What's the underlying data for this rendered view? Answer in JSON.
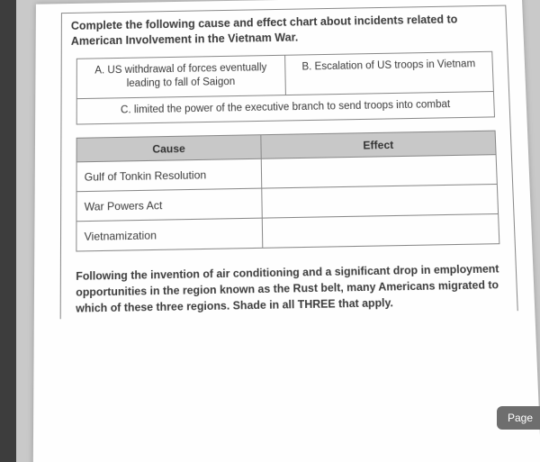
{
  "instruction": "Complete the following cause and effect chart about incidents related to American Involvement in the Vietnam War.",
  "options_box": {
    "a": "A. US withdrawal of forces eventually leading to fall of Saigon",
    "b": "B. Escalation of US troops in Vietnam",
    "c": "C. limited the power of the executive branch to send troops into combat"
  },
  "table": {
    "headers": {
      "cause": "Cause",
      "effect": "Effect"
    },
    "rows": [
      {
        "cause": "Gulf of Tonkin Resolution",
        "effect": ""
      },
      {
        "cause": "War Powers Act",
        "effect": ""
      },
      {
        "cause": "Vietnamization",
        "effect": ""
      }
    ]
  },
  "question2": "Following the invention of air conditioning and a significant drop in employment opportunities in the region known as the Rust belt, many Americans migrated to which of these three regions. Shade in all THREE that apply.",
  "page_tab": "Page"
}
